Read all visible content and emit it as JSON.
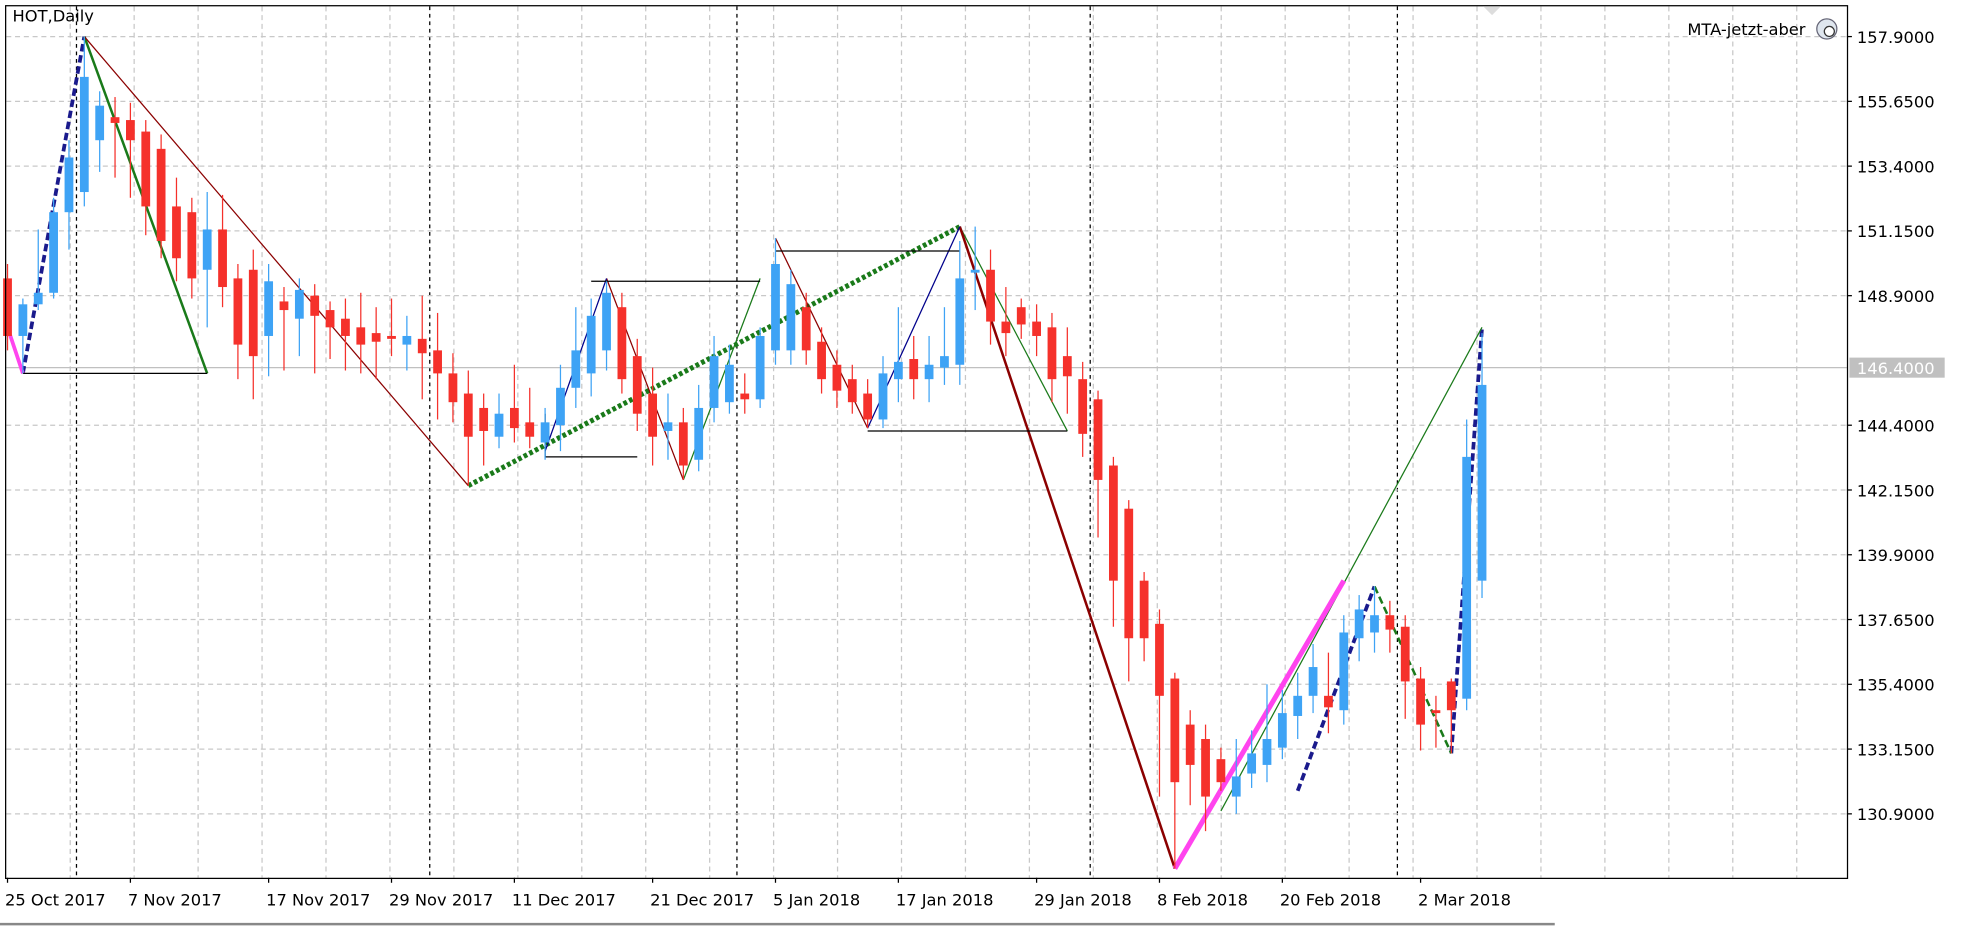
{
  "chart_data": {
    "type": "candlestick",
    "title": "HOT,Daily",
    "indicator": "MTA-jetzt-aber",
    "up_color": "#3ea3f5",
    "down_color": "#f5312b",
    "grid": true,
    "ylim": [
      128.68,
      158.95
    ],
    "yticks": [
      {
        "value": 157.9,
        "label": "157.9000"
      },
      {
        "value": 155.65,
        "label": "155.6500"
      },
      {
        "value": 153.4,
        "label": "153.4000"
      },
      {
        "value": 151.15,
        "label": "151.1500"
      },
      {
        "value": 148.9,
        "label": "148.9000"
      },
      {
        "value": 144.4,
        "label": "144.4000"
      },
      {
        "value": 142.15,
        "label": "142.1500"
      },
      {
        "value": 139.9,
        "label": "139.9000"
      },
      {
        "value": 137.65,
        "label": "137.6500"
      },
      {
        "value": 135.4,
        "label": "135.4000"
      },
      {
        "value": 133.15,
        "label": "133.1500"
      },
      {
        "value": 130.9,
        "label": "130.9000"
      }
    ],
    "last_price": {
      "value": 146.4,
      "label": "146.4000"
    },
    "categories": [
      "25 Oct 2017",
      null,
      null,
      null,
      null,
      null,
      null,
      null,
      "7 Nov 2017",
      null,
      null,
      null,
      null,
      null,
      null,
      null,
      null,
      "17 Nov 2017",
      null,
      null,
      null,
      null,
      null,
      null,
      null,
      "29 Nov 2017",
      null,
      null,
      null,
      null,
      null,
      null,
      null,
      "11 Dec 2017",
      null,
      null,
      null,
      null,
      null,
      null,
      null,
      null,
      "21 Dec 2017",
      null,
      null,
      null,
      null,
      null,
      null,
      null,
      "5 Jan 2018",
      null,
      null,
      null,
      null,
      null,
      null,
      null,
      "17 Jan 2018",
      null,
      null,
      null,
      null,
      null,
      null,
      null,
      null,
      "29 Jan 2018",
      null,
      null,
      null,
      null,
      null,
      null,
      null,
      "8 Feb 2018",
      null,
      null,
      null,
      null,
      null,
      null,
      null,
      "20 Feb 2018",
      null,
      null,
      null,
      null,
      null,
      null,
      null,
      null,
      "2 Mar 2018",
      null,
      null,
      null,
      null
    ],
    "open": [
      149.5,
      147.5,
      148.6,
      149.0,
      151.8,
      152.5,
      154.3,
      155.1,
      155.0,
      154.6,
      154.0,
      152.0,
      151.8,
      149.8,
      151.2,
      149.5,
      149.8,
      147.5,
      148.7,
      148.1,
      148.9,
      148.4,
      148.1,
      147.8,
      147.6,
      147.5,
      147.2,
      147.4,
      147.0,
      146.2,
      145.5,
      145.0,
      144.0,
      145.0,
      144.5,
      143.8,
      144.4,
      145.7,
      146.2,
      147.0,
      148.5,
      146.8,
      145.5,
      144.2,
      144.5,
      143.2,
      145.0,
      145.2,
      145.5,
      145.3,
      147.0,
      147.0,
      148.5,
      147.3,
      146.5,
      146.0,
      145.5,
      144.6,
      146.0,
      146.7,
      146.0,
      146.4,
      146.5,
      149.7,
      149.8,
      148.0,
      148.5,
      148.0,
      147.8,
      146.8,
      146.0,
      145.3,
      143.0,
      141.5,
      139.0,
      137.5,
      135.6,
      134.0,
      133.5,
      132.8,
      131.5,
      132.3,
      132.6,
      133.2,
      134.3,
      135.0,
      135.0,
      134.5,
      137.0,
      137.2,
      137.8,
      137.4,
      135.6,
      134.5,
      135.5,
      134.9,
      139.0
    ],
    "high": [
      150.0,
      148.8,
      151.2,
      152.3,
      154.3,
      157.9,
      156.0,
      155.8,
      155.6,
      155.0,
      154.5,
      153.0,
      152.3,
      152.5,
      152.4,
      150.0,
      150.5,
      150.0,
      149.2,
      149.5,
      149.3,
      148.7,
      148.8,
      149.0,
      148.5,
      148.8,
      148.2,
      148.9,
      148.3,
      146.9,
      146.3,
      145.5,
      145.5,
      146.5,
      145.7,
      145.0,
      146.5,
      148.5,
      148.8,
      149.4,
      149.0,
      147.4,
      146.4,
      145.5,
      145.0,
      145.8,
      147.5,
      147.2,
      146.2,
      147.8,
      150.9,
      149.8,
      149.0,
      147.8,
      147.0,
      146.5,
      146.0,
      146.8,
      148.5,
      147.5,
      147.5,
      148.5,
      150.8,
      151.3,
      150.5,
      149.2,
      148.8,
      148.6,
      148.3,
      147.8,
      146.6,
      145.6,
      143.3,
      141.8,
      139.3,
      138.0,
      135.8,
      134.5,
      134.0,
      133.2,
      133.5,
      133.8,
      135.4,
      135.2,
      135.8,
      136.8,
      136.5,
      137.8,
      138.5,
      138.8,
      138.3,
      137.8,
      136.0,
      135.0,
      135.6,
      144.6,
      147.6
    ],
    "low": [
      147.0,
      146.2,
      148.4,
      148.8,
      150.5,
      152.0,
      153.2,
      153.0,
      152.3,
      151.0,
      150.2,
      149.4,
      148.8,
      147.8,
      148.5,
      146.0,
      145.3,
      146.1,
      146.3,
      146.8,
      146.2,
      146.7,
      146.3,
      146.2,
      146.0,
      146.8,
      146.3,
      145.3,
      144.6,
      144.5,
      142.3,
      143.0,
      143.6,
      143.8,
      143.6,
      143.2,
      143.5,
      145.0,
      145.4,
      146.3,
      145.5,
      144.2,
      143.0,
      143.2,
      142.5,
      142.8,
      144.5,
      144.8,
      144.8,
      145.0,
      146.5,
      146.5,
      146.5,
      145.5,
      145.0,
      144.8,
      144.3,
      144.3,
      145.2,
      145.3,
      145.2,
      145.8,
      145.8,
      148.4,
      147.2,
      146.8,
      147.4,
      146.8,
      145.2,
      144.8,
      143.3,
      140.5,
      137.4,
      135.5,
      136.2,
      131.5,
      129.0,
      131.2,
      130.3,
      131.7,
      130.9,
      131.8,
      132.0,
      132.8,
      133.5,
      134.4,
      133.7,
      134.0,
      136.2,
      136.5,
      136.5,
      134.2,
      133.1,
      133.2,
      133.0,
      134.5,
      138.4
    ],
    "close": [
      147.5,
      148.6,
      149.0,
      151.8,
      153.7,
      156.5,
      155.5,
      154.9,
      154.3,
      152.0,
      150.8,
      150.2,
      149.5,
      151.2,
      149.2,
      147.2,
      146.8,
      149.4,
      148.4,
      149.1,
      148.2,
      147.8,
      147.5,
      147.2,
      147.3,
      147.4,
      147.5,
      146.9,
      146.2,
      145.2,
      144.0,
      144.2,
      144.8,
      144.3,
      144.0,
      144.5,
      145.7,
      147.0,
      148.2,
      149.0,
      146.0,
      144.8,
      144.0,
      144.5,
      143.0,
      145.0,
      146.8,
      146.5,
      145.3,
      147.5,
      150.0,
      149.3,
      147.0,
      146.0,
      145.6,
      145.2,
      144.6,
      146.2,
      146.6,
      146.0,
      146.5,
      146.8,
      149.5,
      149.8,
      148.0,
      147.6,
      147.9,
      147.5,
      146.0,
      146.1,
      144.1,
      142.5,
      139.0,
      137.0,
      137.0,
      135.0,
      132.0,
      132.6,
      131.5,
      132.0,
      132.2,
      133.0,
      133.5,
      134.4,
      135.0,
      136.0,
      134.6,
      137.2,
      138.0,
      137.8,
      137.3,
      135.5,
      134.0,
      134.4,
      134.5,
      143.3,
      145.8
    ],
    "overlays": [
      {
        "color": "#1a1a8c",
        "width": 3,
        "style": "dashed",
        "points": [
          [
            1,
            146.2
          ],
          [
            5,
            157.9
          ]
        ]
      },
      {
        "color": "#1a1a8c",
        "width": 3,
        "style": "dashed",
        "points": [
          [
            84,
            131.7
          ],
          [
            89,
            138.8
          ]
        ]
      },
      {
        "color": "#1a1a8c",
        "width": 3,
        "style": "dashed",
        "points": [
          [
            94,
            133.0
          ],
          [
            96,
            147.8
          ]
        ]
      },
      {
        "color": "#1a7a1a",
        "width": 2,
        "style": "solid",
        "points": [
          [
            5,
            157.9
          ],
          [
            13,
            146.2
          ]
        ]
      },
      {
        "color": "#1a7a1a",
        "width": 4,
        "style": "dotted",
        "points": [
          [
            30,
            142.3
          ],
          [
            62,
            151.3
          ]
        ]
      },
      {
        "color": "#1a7a1a",
        "width": 1,
        "style": "solid",
        "points": [
          [
            44,
            142.5
          ],
          [
            49,
            149.5
          ]
        ]
      },
      {
        "color": "#1a7a1a",
        "width": 1,
        "style": "solid",
        "points": [
          [
            62,
            151.3
          ],
          [
            69,
            144.2
          ]
        ]
      },
      {
        "color": "#1a7a1a",
        "width": 1,
        "style": "solid",
        "points": [
          [
            79,
            131.0
          ],
          [
            96,
            147.8
          ]
        ]
      },
      {
        "color": "#1a7a1a",
        "width": 2,
        "style": "dashed",
        "points": [
          [
            89,
            138.8
          ],
          [
            94,
            133.0
          ]
        ]
      },
      {
        "color": "#8b0000",
        "width": 1,
        "style": "solid",
        "points": [
          [
            5,
            157.9
          ],
          [
            30,
            142.3
          ]
        ]
      },
      {
        "color": "#8b0000",
        "width": 1,
        "style": "solid",
        "points": [
          [
            39,
            149.5
          ],
          [
            44,
            142.5
          ]
        ]
      },
      {
        "color": "#8b0000",
        "width": 1,
        "style": "solid",
        "points": [
          [
            50,
            150.9
          ],
          [
            56,
            144.3
          ]
        ]
      },
      {
        "color": "#8b0000",
        "width": 2,
        "style": "solid",
        "points": [
          [
            62,
            151.3
          ],
          [
            76,
            129.0
          ]
        ]
      },
      {
        "color": "#00008b",
        "width": 1,
        "style": "solid",
        "points": [
          [
            35,
            143.5
          ],
          [
            39,
            149.5
          ]
        ]
      },
      {
        "color": "#00008b",
        "width": 1,
        "style": "solid",
        "points": [
          [
            56,
            144.3
          ],
          [
            62,
            151.3
          ]
        ]
      },
      {
        "color": "#ff44ee",
        "width": 4,
        "style": "solid",
        "points": [
          [
            76,
            129.0
          ],
          [
            87,
            139.0
          ]
        ]
      },
      {
        "color": "#ff44ee",
        "width": 3,
        "style": "solid",
        "points": [
          [
            0,
            147.8
          ],
          [
            1,
            146.2
          ]
        ]
      },
      {
        "color": "#000000",
        "width": 1,
        "style": "solid",
        "points": [
          [
            1,
            146.2
          ],
          [
            13,
            146.2
          ]
        ]
      },
      {
        "color": "#000000",
        "width": 1,
        "style": "solid",
        "points": [
          [
            35,
            144.8
          ],
          [
            35,
            143.3
          ],
          [
            41,
            143.3
          ]
        ]
      },
      {
        "color": "#000000",
        "width": 1,
        "style": "solid",
        "points": [
          [
            38,
            149.4
          ],
          [
            49,
            149.4
          ]
        ]
      },
      {
        "color": "#000000",
        "width": 1,
        "style": "solid",
        "points": [
          [
            50,
            150.45
          ],
          [
            62,
            150.45
          ]
        ]
      },
      {
        "color": "#000000",
        "width": 1,
        "style": "solid",
        "points": [
          [
            56,
            144.2
          ],
          [
            69,
            144.2
          ]
        ]
      }
    ]
  }
}
